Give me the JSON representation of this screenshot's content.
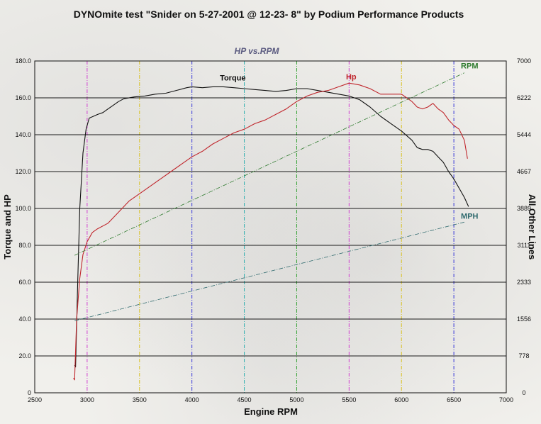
{
  "chart_data": {
    "type": "line",
    "title": "DYNOmite test \"Snider on 5-27-2001 @ 12-23- 8\" by Podium Performance Products",
    "subtitle": "HP vs.RPM",
    "xlabel": "Engine RPM",
    "ylabel": "Torque and HP",
    "y2label": "All Other Lines",
    "xlim": [
      2500,
      7000
    ],
    "ylim": [
      0,
      180
    ],
    "y2lim": [
      0,
      7000
    ],
    "x_ticks": [
      "2500",
      "3000",
      "3500",
      "4000",
      "4500",
      "5000",
      "5500",
      "6000",
      "6500",
      "7000"
    ],
    "y_ticks": [
      "0",
      "20.0",
      "40.0",
      "60.0",
      "80.0",
      "100.0",
      "120.0",
      "140.0",
      "160.0",
      "180.0"
    ],
    "y2_ticks": [
      "0",
      "778",
      "1556",
      "2333",
      "3111",
      "3889",
      "4667",
      "5444",
      "6222",
      "7000"
    ],
    "grid": true,
    "series": [
      {
        "name": "Torque",
        "axis": "left",
        "color": "#111111",
        "points": [
          [
            2880,
            15
          ],
          [
            2890,
            14
          ],
          [
            2910,
            60
          ],
          [
            2930,
            100
          ],
          [
            2960,
            130
          ],
          [
            2990,
            143
          ],
          [
            3020,
            149
          ],
          [
            3060,
            150
          ],
          [
            3100,
            151
          ],
          [
            3150,
            152
          ],
          [
            3200,
            154
          ],
          [
            3250,
            156
          ],
          [
            3300,
            158
          ],
          [
            3350,
            159.5
          ],
          [
            3450,
            160.5
          ],
          [
            3550,
            161
          ],
          [
            3650,
            162
          ],
          [
            3750,
            162.5
          ],
          [
            3850,
            164
          ],
          [
            3950,
            165.5
          ],
          [
            4000,
            166
          ],
          [
            4100,
            165.5
          ],
          [
            4200,
            166
          ],
          [
            4300,
            166
          ],
          [
            4400,
            165.5
          ],
          [
            4500,
            165
          ],
          [
            4600,
            164.5
          ],
          [
            4700,
            164
          ],
          [
            4800,
            163.5
          ],
          [
            4900,
            164
          ],
          [
            5000,
            165
          ],
          [
            5100,
            165
          ],
          [
            5200,
            164
          ],
          [
            5300,
            163
          ],
          [
            5400,
            162
          ],
          [
            5500,
            161
          ],
          [
            5600,
            159
          ],
          [
            5700,
            155
          ],
          [
            5800,
            150
          ],
          [
            5900,
            146
          ],
          [
            6000,
            142
          ],
          [
            6100,
            137
          ],
          [
            6150,
            133
          ],
          [
            6200,
            132
          ],
          [
            6250,
            132
          ],
          [
            6300,
            131
          ],
          [
            6350,
            128
          ],
          [
            6400,
            125
          ],
          [
            6450,
            120
          ],
          [
            6500,
            116
          ],
          [
            6560,
            110
          ],
          [
            6600,
            106
          ],
          [
            6640,
            101
          ]
        ]
      },
      {
        "name": "Hp",
        "axis": "left",
        "color": "#c0262c",
        "points": [
          [
            2870,
            8
          ],
          [
            2880,
            7
          ],
          [
            2900,
            40
          ],
          [
            2930,
            62
          ],
          [
            2960,
            75
          ],
          [
            3000,
            82
          ],
          [
            3050,
            87
          ],
          [
            3100,
            89
          ],
          [
            3200,
            92
          ],
          [
            3300,
            98
          ],
          [
            3400,
            104
          ],
          [
            3500,
            108
          ],
          [
            3600,
            112
          ],
          [
            3700,
            116
          ],
          [
            3800,
            120
          ],
          [
            3900,
            124
          ],
          [
            4000,
            128
          ],
          [
            4100,
            131
          ],
          [
            4200,
            135
          ],
          [
            4300,
            138
          ],
          [
            4400,
            141
          ],
          [
            4500,
            143
          ],
          [
            4600,
            146
          ],
          [
            4700,
            148
          ],
          [
            4800,
            151
          ],
          [
            4900,
            154
          ],
          [
            5000,
            158
          ],
          [
            5100,
            161
          ],
          [
            5200,
            163
          ],
          [
            5300,
            164
          ],
          [
            5400,
            166
          ],
          [
            5500,
            168
          ],
          [
            5600,
            167
          ],
          [
            5700,
            165
          ],
          [
            5800,
            162
          ],
          [
            5900,
            162
          ],
          [
            6000,
            162
          ],
          [
            6050,
            160
          ],
          [
            6100,
            158
          ],
          [
            6150,
            155
          ],
          [
            6200,
            154
          ],
          [
            6250,
            155
          ],
          [
            6300,
            157
          ],
          [
            6350,
            154
          ],
          [
            6400,
            152
          ],
          [
            6450,
            148
          ],
          [
            6500,
            145
          ],
          [
            6550,
            143
          ],
          [
            6600,
            137
          ],
          [
            6630,
            127
          ]
        ]
      },
      {
        "name": "RPM",
        "axis": "right",
        "color": "#2d7a2d",
        "points": [
          [
            2880,
            2900
          ],
          [
            6600,
            6750
          ]
        ]
      },
      {
        "name": "MPH",
        "axis": "right",
        "color": "#2f6a6e",
        "points": [
          [
            2880,
            1520
          ],
          [
            6600,
            3600
          ]
        ]
      }
    ]
  }
}
